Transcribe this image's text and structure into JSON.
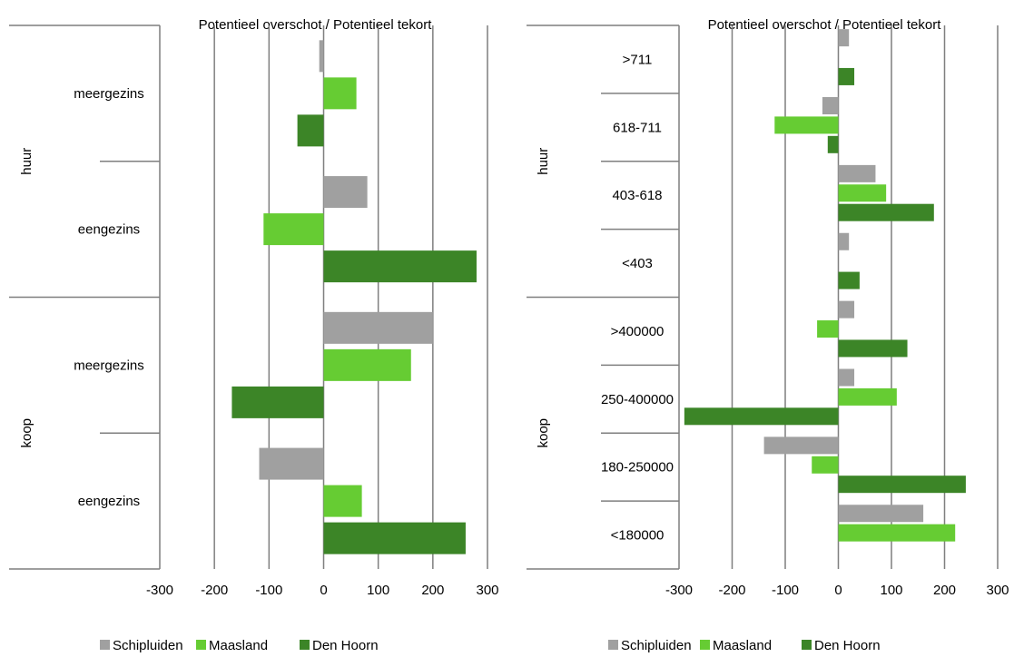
{
  "legend": [
    "Schipluiden",
    "Maasland",
    "Den Hoorn"
  ],
  "colors": {
    "Schipluiden": "#a0a0a0",
    "Maasland": "#66cc33",
    "Den Hoorn": "#3c8527"
  },
  "chart_data": [
    {
      "type": "bar",
      "orientation": "horizontal",
      "title": "Potentieel overschot  / Potentieel tekort",
      "xlim": [
        -300,
        300
      ],
      "xticks": [
        -300,
        -200,
        -100,
        0,
        100,
        200,
        300
      ],
      "grid": true,
      "legend_position": "bottom",
      "groups": [
        {
          "label": "huur",
          "categories": [
            {
              "label": "meergezins",
              "values": {
                "Schipluiden": -8,
                "Maasland": 60,
                "Den Hoorn": -48
              }
            },
            {
              "label": "eengezins",
              "values": {
                "Schipluiden": 80,
                "Maasland": -110,
                "Den Hoorn": 280
              }
            }
          ]
        },
        {
          "label": "koop",
          "categories": [
            {
              "label": "meergezins",
              "values": {
                "Schipluiden": 200,
                "Maasland": 160,
                "Den Hoorn": -168
              }
            },
            {
              "label": "eengezins",
              "values": {
                "Schipluiden": -118,
                "Maasland": 70,
                "Den Hoorn": 260
              }
            }
          ]
        }
      ]
    },
    {
      "type": "bar",
      "orientation": "horizontal",
      "title": "Potentieel overschot  / Potentieel tekort",
      "xlim": [
        -300,
        300
      ],
      "xticks": [
        -300,
        -200,
        -100,
        0,
        100,
        200,
        300
      ],
      "grid": true,
      "legend_position": "bottom",
      "groups": [
        {
          "label": "huur",
          "categories": [
            {
              "label": ">711",
              "values": {
                "Schipluiden": 20,
                "Maasland": 0,
                "Den Hoorn": 30
              }
            },
            {
              "label": "618-711",
              "values": {
                "Schipluiden": -30,
                "Maasland": -120,
                "Den Hoorn": -20
              }
            },
            {
              "label": "403-618",
              "values": {
                "Schipluiden": 70,
                "Maasland": 90,
                "Den Hoorn": 180
              }
            },
            {
              "label": "<403",
              "values": {
                "Schipluiden": 20,
                "Maasland": 0,
                "Den Hoorn": 40
              }
            }
          ]
        },
        {
          "label": "koop",
          "categories": [
            {
              "label": ">400000",
              "values": {
                "Schipluiden": 30,
                "Maasland": -40,
                "Den Hoorn": 130
              }
            },
            {
              "label": "250-400000",
              "values": {
                "Schipluiden": 30,
                "Maasland": 110,
                "Den Hoorn": -290
              }
            },
            {
              "label": "180-250000",
              "values": {
                "Schipluiden": -140,
                "Maasland": -50,
                "Den Hoorn": 240
              }
            },
            {
              "label": "<180000",
              "values": {
                "Schipluiden": 160,
                "Maasland": 220,
                "Den Hoorn": 0
              }
            }
          ]
        }
      ]
    }
  ]
}
